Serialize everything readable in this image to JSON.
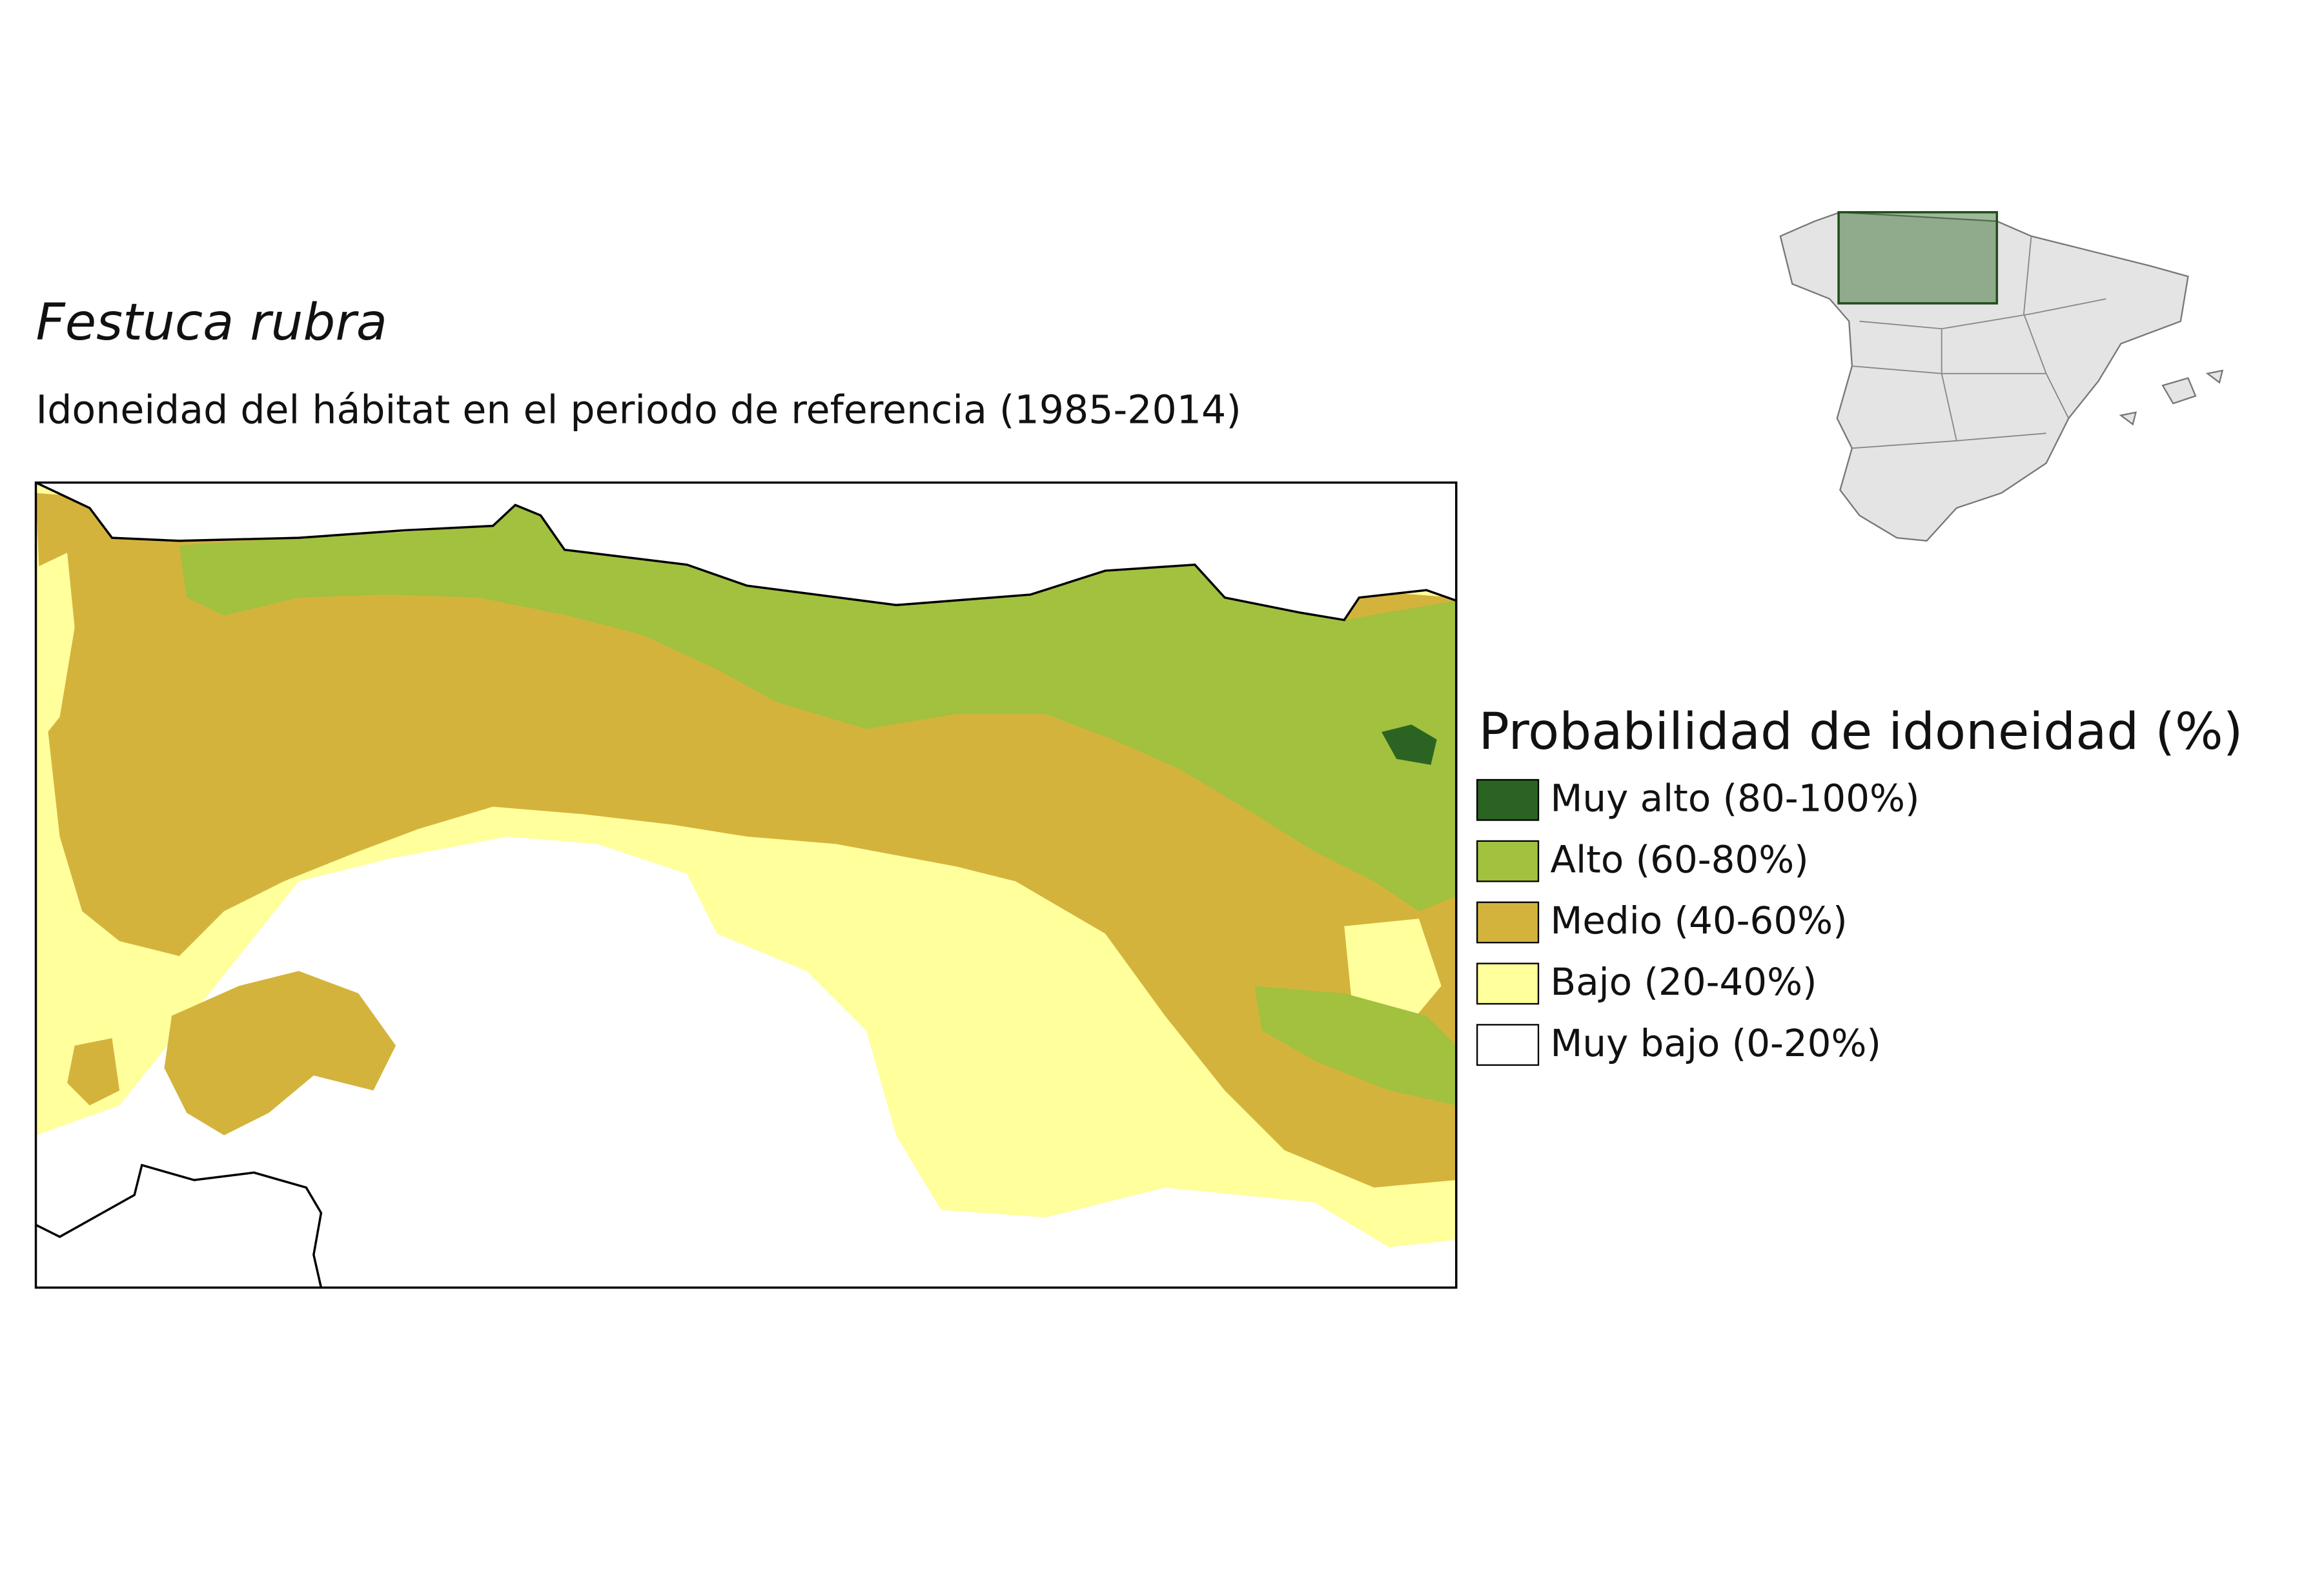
{
  "title": "Festuca rubra",
  "subtitle": "Idoneidad del hábitat en el periodo de referencia (1985-2014)",
  "legend": {
    "title": "Probabilidad de idoneidad (%)",
    "items": [
      {
        "label": "Muy alto (80-100%)",
        "color": "#2b6422"
      },
      {
        "label": "Alto (60-80%)",
        "color": "#a2c13e"
      },
      {
        "label": "Medio (40-60%)",
        "color": "#d4b33c"
      },
      {
        "label": "Bajo (20-40%)",
        "color": "#ffff9c"
      },
      {
        "label": "Muy bajo (0-20%)",
        "color": "#ffffff"
      }
    ]
  }
}
